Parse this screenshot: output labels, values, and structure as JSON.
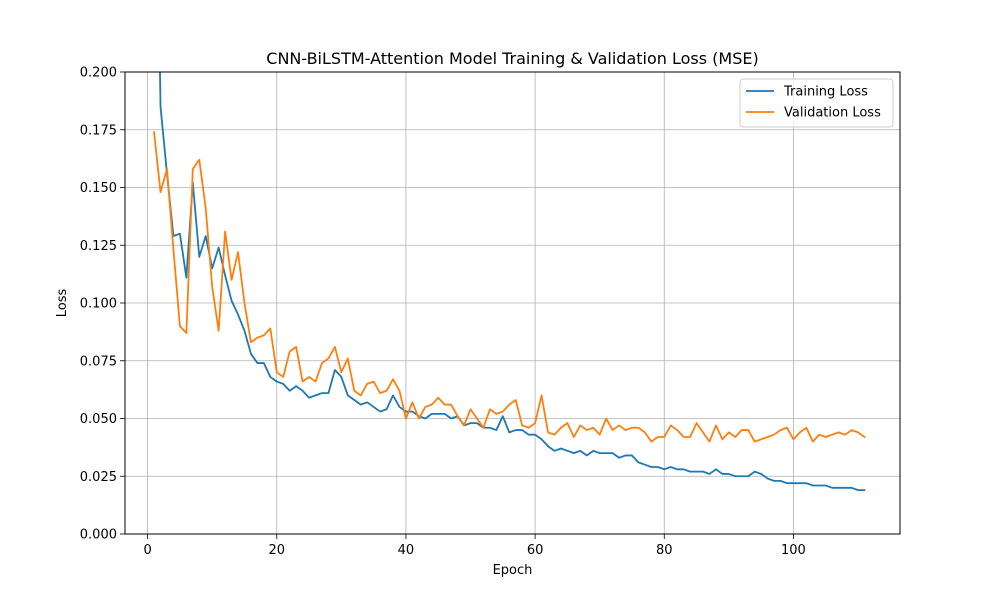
{
  "chart_data": {
    "type": "line",
    "title": "CNN-BiLSTM-Attention Model Training & Validation Loss (MSE)",
    "xlabel": "Epoch",
    "ylabel": "Loss",
    "xlim": [
      -3.5,
      116.5
    ],
    "ylim": [
      0.0,
      0.2
    ],
    "xticks": [
      0,
      20,
      40,
      60,
      80,
      100
    ],
    "yticks": [
      0.0,
      0.025,
      0.05,
      0.075,
      0.1,
      0.125,
      0.15,
      0.175,
      0.2
    ],
    "ytick_labels": [
      "0.000",
      "0.025",
      "0.050",
      "0.075",
      "0.100",
      "0.125",
      "0.150",
      "0.175",
      "0.200"
    ],
    "grid": true,
    "legend_position": "top-right",
    "series": [
      {
        "name": "Training Loss",
        "color": "#1f77b4",
        "x": [
          1,
          2,
          3,
          4,
          5,
          6,
          7,
          8,
          9,
          10,
          11,
          12,
          13,
          14,
          15,
          16,
          17,
          18,
          19,
          20,
          21,
          22,
          23,
          24,
          25,
          26,
          27,
          28,
          29,
          30,
          31,
          32,
          33,
          34,
          35,
          36,
          37,
          38,
          39,
          40,
          41,
          42,
          43,
          44,
          45,
          46,
          47,
          48,
          49,
          50,
          51,
          52,
          53,
          54,
          55,
          56,
          57,
          58,
          59,
          60,
          61,
          62,
          63,
          64,
          65,
          66,
          67,
          68,
          69,
          70,
          71,
          72,
          73,
          74,
          75,
          76,
          77,
          78,
          79,
          80,
          81,
          82,
          83,
          84,
          85,
          86,
          87,
          88,
          89,
          90,
          91,
          92,
          93,
          94,
          95,
          96,
          97,
          98,
          99,
          100,
          101,
          102,
          103,
          104,
          105,
          106,
          107,
          108,
          109,
          110,
          111
        ],
        "values": [
          0.36,
          0.185,
          0.156,
          0.129,
          0.13,
          0.111,
          0.152,
          0.12,
          0.129,
          0.115,
          0.124,
          0.112,
          0.101,
          0.095,
          0.088,
          0.078,
          0.074,
          0.074,
          0.068,
          0.066,
          0.065,
          0.062,
          0.064,
          0.062,
          0.059,
          0.06,
          0.061,
          0.061,
          0.071,
          0.068,
          0.06,
          0.058,
          0.056,
          0.057,
          0.055,
          0.053,
          0.054,
          0.06,
          0.055,
          0.053,
          0.053,
          0.051,
          0.05,
          0.052,
          0.052,
          0.052,
          0.05,
          0.051,
          0.047,
          0.048,
          0.048,
          0.046,
          0.046,
          0.045,
          0.051,
          0.044,
          0.045,
          0.045,
          0.043,
          0.043,
          0.041,
          0.038,
          0.036,
          0.037,
          0.036,
          0.035,
          0.036,
          0.034,
          0.036,
          0.035,
          0.035,
          0.035,
          0.033,
          0.034,
          0.034,
          0.031,
          0.03,
          0.029,
          0.029,
          0.028,
          0.029,
          0.028,
          0.028,
          0.027,
          0.027,
          0.027,
          0.026,
          0.028,
          0.026,
          0.026,
          0.025,
          0.025,
          0.025,
          0.027,
          0.026,
          0.024,
          0.023,
          0.023,
          0.022,
          0.022,
          0.022,
          0.022,
          0.021,
          0.021,
          0.021,
          0.02,
          0.02,
          0.02,
          0.02,
          0.019,
          0.019
        ]
      },
      {
        "name": "Validation Loss",
        "color": "#ff7f0e",
        "x": [
          1,
          2,
          3,
          4,
          5,
          6,
          7,
          8,
          9,
          10,
          11,
          12,
          13,
          14,
          15,
          16,
          17,
          18,
          19,
          20,
          21,
          22,
          23,
          24,
          25,
          26,
          27,
          28,
          29,
          30,
          31,
          32,
          33,
          34,
          35,
          36,
          37,
          38,
          39,
          40,
          41,
          42,
          43,
          44,
          45,
          46,
          47,
          48,
          49,
          50,
          51,
          52,
          53,
          54,
          55,
          56,
          57,
          58,
          59,
          60,
          61,
          62,
          63,
          64,
          65,
          66,
          67,
          68,
          69,
          70,
          71,
          72,
          73,
          74,
          75,
          76,
          77,
          78,
          79,
          80,
          81,
          82,
          83,
          84,
          85,
          86,
          87,
          88,
          89,
          90,
          91,
          92,
          93,
          94,
          95,
          96,
          97,
          98,
          99,
          100,
          101,
          102,
          103,
          104,
          105,
          106,
          107,
          108,
          109,
          110,
          111
        ],
        "values": [
          0.174,
          0.148,
          0.158,
          0.123,
          0.09,
          0.087,
          0.158,
          0.162,
          0.141,
          0.107,
          0.088,
          0.131,
          0.11,
          0.122,
          0.1,
          0.083,
          0.085,
          0.086,
          0.089,
          0.07,
          0.068,
          0.079,
          0.081,
          0.066,
          0.068,
          0.066,
          0.074,
          0.076,
          0.081,
          0.07,
          0.076,
          0.062,
          0.06,
          0.065,
          0.066,
          0.061,
          0.062,
          0.067,
          0.062,
          0.05,
          0.057,
          0.05,
          0.055,
          0.056,
          0.059,
          0.056,
          0.056,
          0.051,
          0.047,
          0.054,
          0.05,
          0.046,
          0.054,
          0.052,
          0.053,
          0.056,
          0.058,
          0.047,
          0.046,
          0.048,
          0.06,
          0.044,
          0.043,
          0.046,
          0.048,
          0.042,
          0.047,
          0.045,
          0.046,
          0.043,
          0.05,
          0.045,
          0.047,
          0.045,
          0.046,
          0.046,
          0.044,
          0.04,
          0.042,
          0.042,
          0.047,
          0.045,
          0.042,
          0.042,
          0.048,
          0.044,
          0.04,
          0.047,
          0.041,
          0.044,
          0.042,
          0.045,
          0.045,
          0.04,
          0.041,
          0.042,
          0.043,
          0.045,
          0.046,
          0.041,
          0.044,
          0.046,
          0.04,
          0.043,
          0.042,
          0.043,
          0.044,
          0.043,
          0.045,
          0.044,
          0.042
        ]
      }
    ]
  }
}
